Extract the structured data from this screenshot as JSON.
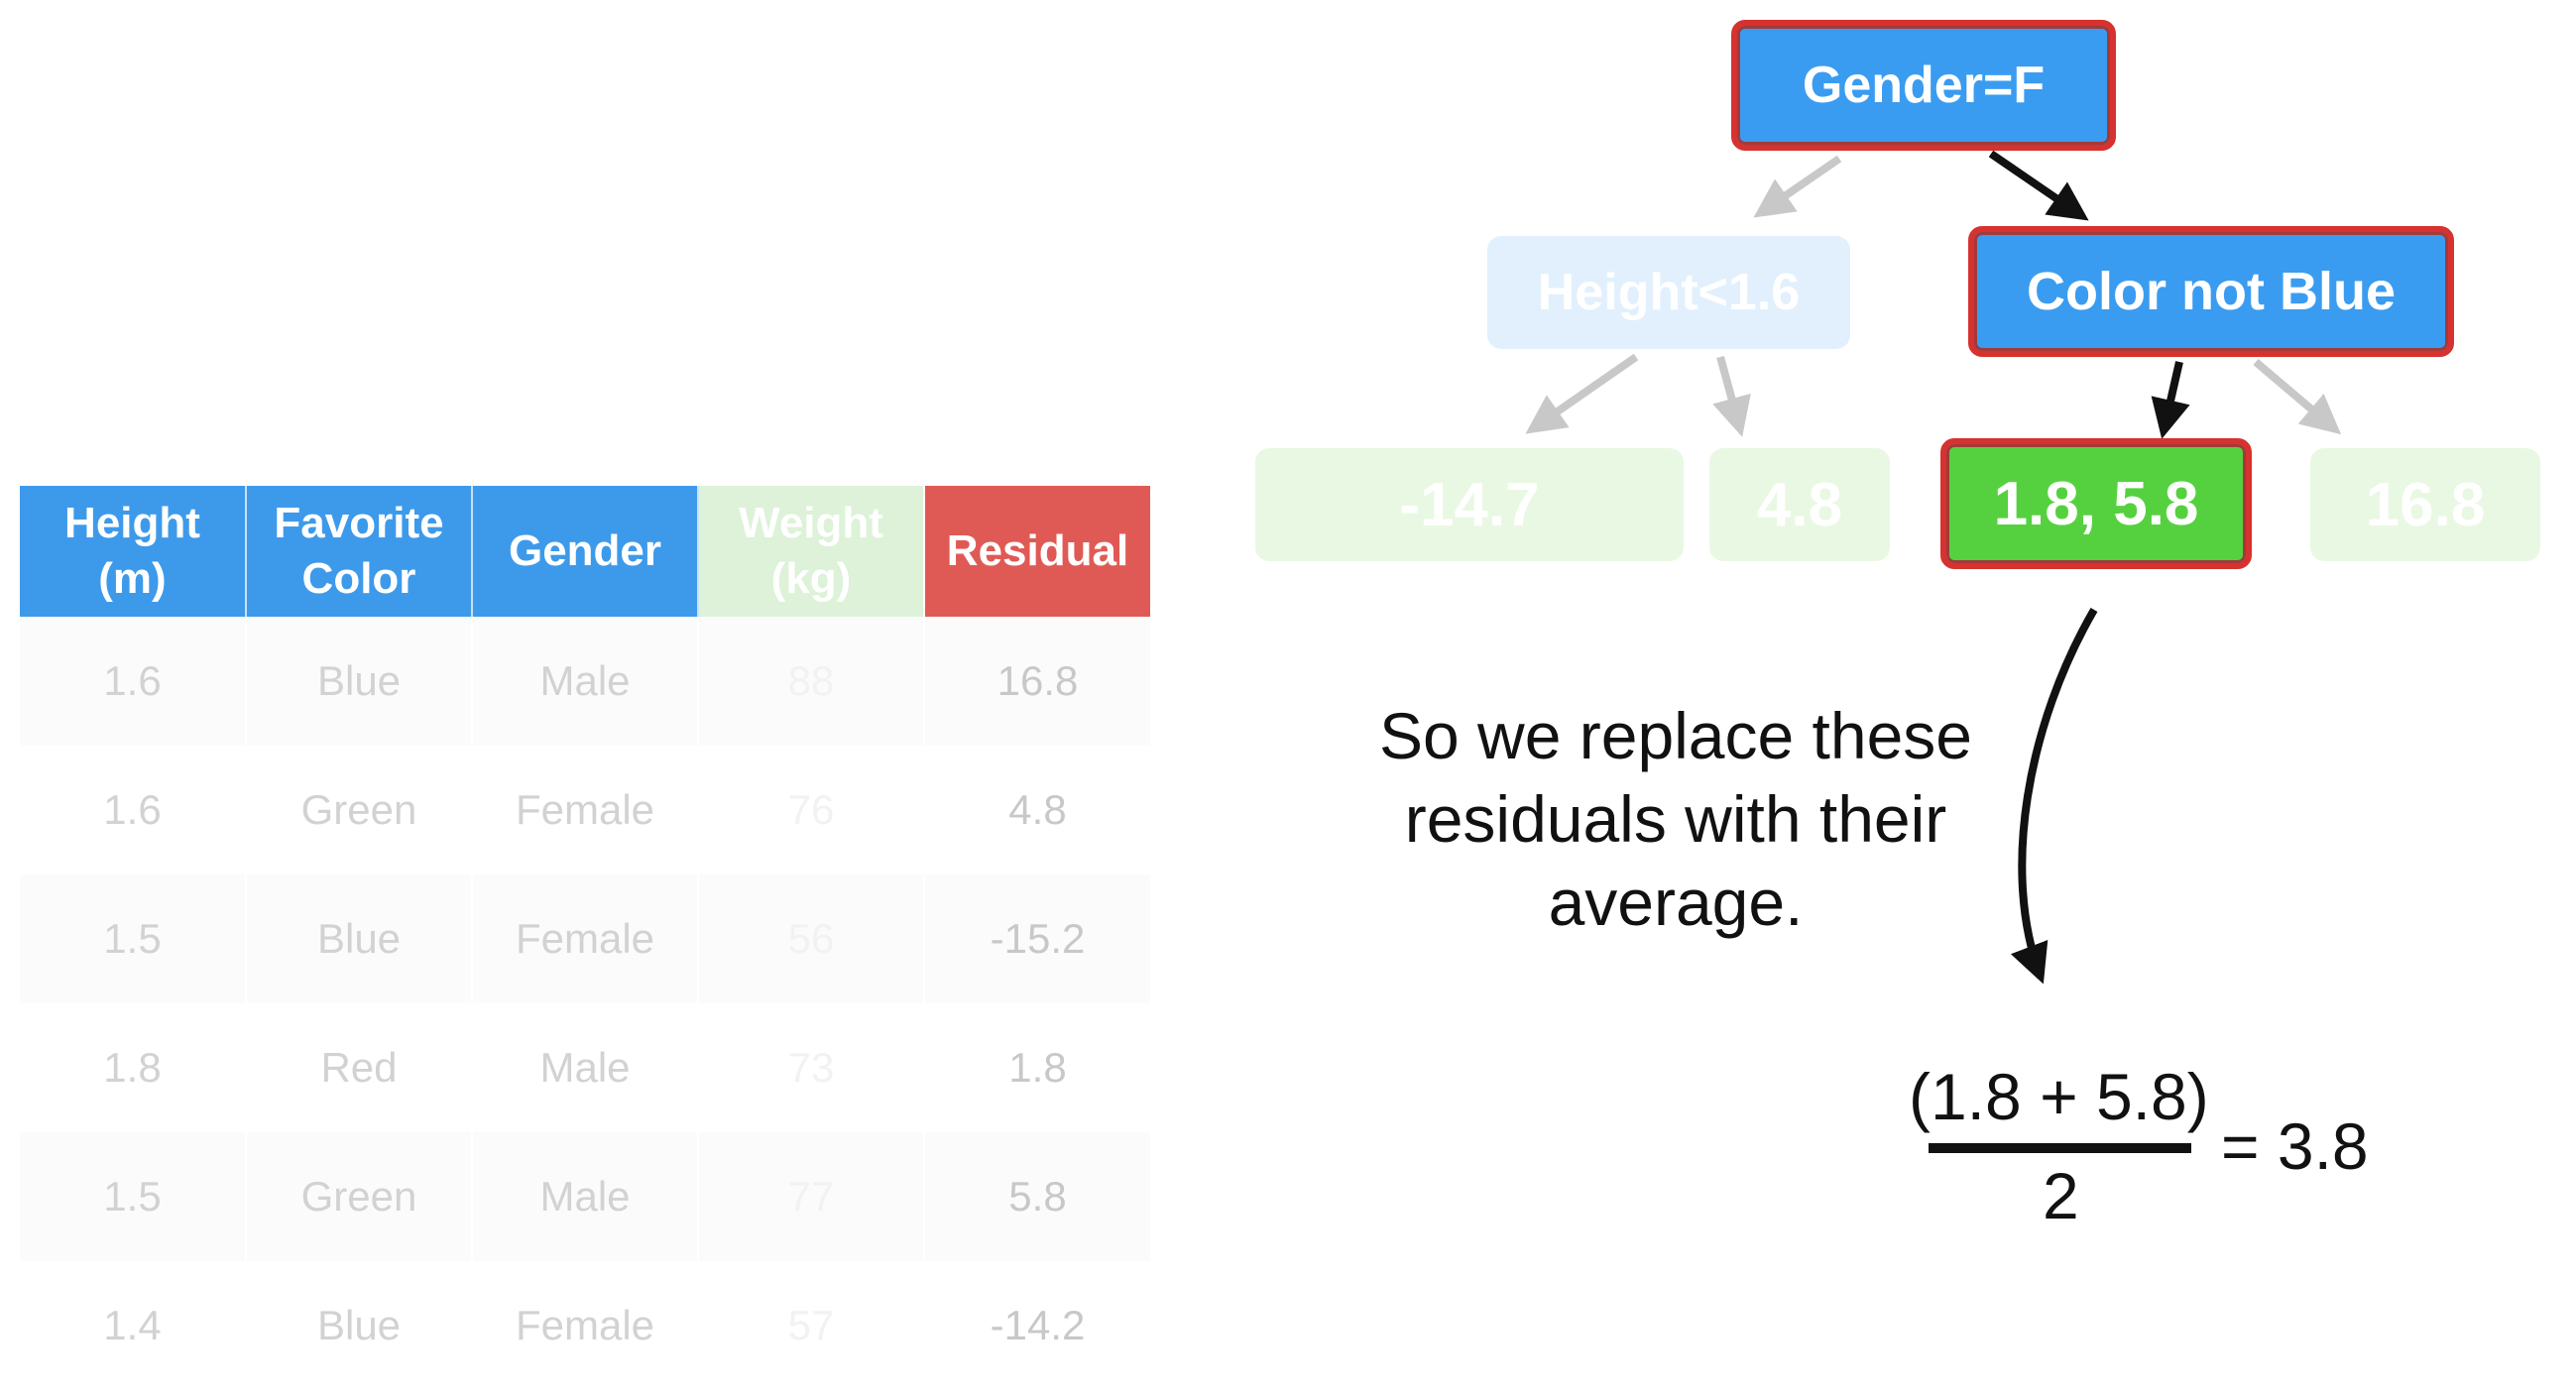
{
  "table": {
    "headers": [
      {
        "line1": "Height",
        "line2": "(m)"
      },
      {
        "line1": "Favorite",
        "line2": "Color"
      },
      {
        "line1": "Gender",
        "line2": ""
      },
      {
        "line1": "Weight",
        "line2": "(kg)"
      },
      {
        "line1": "Residual",
        "line2": ""
      }
    ],
    "rows": [
      {
        "height": "1.6",
        "color": "Blue",
        "gender": "Male",
        "weight": "88",
        "residual": "16.8"
      },
      {
        "height": "1.6",
        "color": "Green",
        "gender": "Female",
        "weight": "76",
        "residual": "4.8"
      },
      {
        "height": "1.5",
        "color": "Blue",
        "gender": "Female",
        "weight": "56",
        "residual": "-15.2"
      },
      {
        "height": "1.8",
        "color": "Red",
        "gender": "Male",
        "weight": "73",
        "residual": "1.8"
      },
      {
        "height": "1.5",
        "color": "Green",
        "gender": "Male",
        "weight": "77",
        "residual": "5.8"
      },
      {
        "height": "1.4",
        "color": "Blue",
        "gender": "Female",
        "weight": "57",
        "residual": "-14.2"
      }
    ]
  },
  "tree": {
    "root": "Gender=F",
    "left_split": "Height<1.6",
    "right_split": "Color not Blue",
    "leaves": [
      "-14.7",
      "4.8",
      "1.8, 5.8",
      "16.8"
    ]
  },
  "caption": {
    "line1": "So we replace these",
    "line2": "residuals with their",
    "line3": "average."
  },
  "formula": {
    "numerator": "(1.8 + 5.8)",
    "denominator": "2",
    "result": "= 3.8"
  },
  "colors": {
    "active_blue": "#3a9cf0",
    "active_green": "#55d13f",
    "highlight_red": "#d6322f",
    "residual_header": "#e05a55"
  }
}
